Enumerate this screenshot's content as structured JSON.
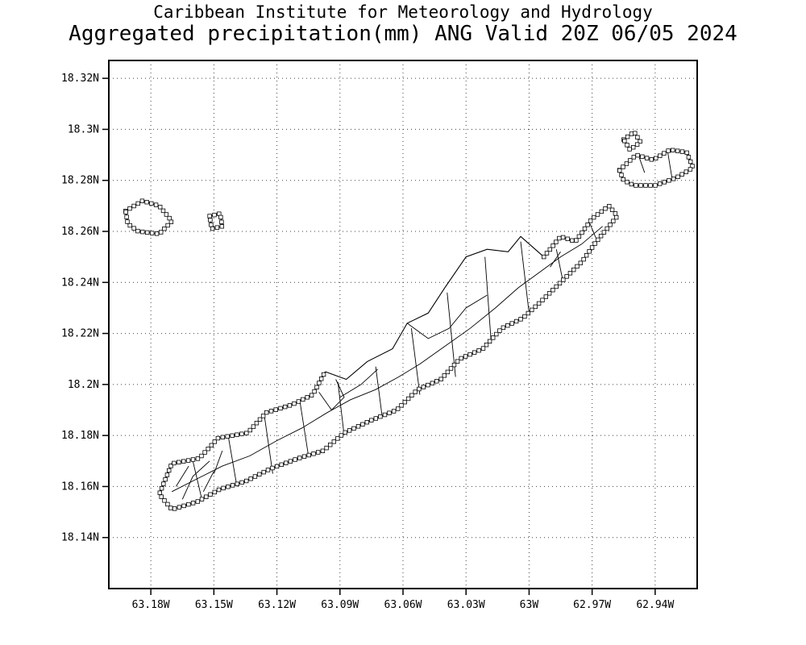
{
  "title": {
    "line1": "Caribbean Institute for Meteorology and Hydrology",
    "line2": "Aggregated precipitation(mm) ANG Valid 20Z 06/05 2024"
  },
  "axes": {
    "x_tick_labels": [
      "63.18W",
      "63.15W",
      "63.12W",
      "63.09W",
      "63.06W",
      "63.03W",
      "63W",
      "62.97W",
      "62.94W"
    ],
    "x_tick_lons": [
      -63.18,
      -63.15,
      -63.12,
      -63.09,
      -63.06,
      -63.03,
      -63.0,
      -62.97,
      -62.94
    ],
    "y_tick_labels": [
      "18.32N",
      "18.3N",
      "18.28N",
      "18.26N",
      "18.24N",
      "18.22N",
      "18.2N",
      "18.18N",
      "18.16N",
      "18.14N"
    ],
    "y_tick_lats": [
      18.32,
      18.3,
      18.28,
      18.26,
      18.24,
      18.22,
      18.2,
      18.18,
      18.16,
      18.14
    ],
    "lon_range": [
      -63.2,
      -62.92
    ],
    "lat_range": [
      18.12,
      18.327
    ]
  },
  "map_data": {
    "type": "map",
    "region_code": "ANG",
    "coast_hatched_open": [
      [
        [
          -62.993,
          18.25
        ],
        [
          -62.985,
          18.258
        ],
        [
          -62.978,
          18.256
        ],
        [
          -62.97,
          18.265
        ],
        [
          -62.962,
          18.27
        ],
        [
          -62.958,
          18.266
        ],
        [
          -62.968,
          18.256
        ],
        [
          -62.975,
          18.248
        ],
        [
          -62.985,
          18.24
        ],
        [
          -62.995,
          18.232
        ],
        [
          -63.003,
          18.226
        ],
        [
          -63.013,
          18.222
        ],
        [
          -63.022,
          18.214
        ],
        [
          -63.033,
          18.21
        ],
        [
          -63.042,
          18.202
        ],
        [
          -63.053,
          18.198
        ],
        [
          -63.063,
          18.19
        ],
        [
          -63.075,
          18.186
        ],
        [
          -63.088,
          18.181
        ],
        [
          -63.098,
          18.174
        ],
        [
          -63.11,
          18.171
        ],
        [
          -63.123,
          18.167
        ],
        [
          -63.135,
          18.162
        ],
        [
          -63.147,
          18.159
        ],
        [
          -63.158,
          18.154
        ],
        [
          -63.17,
          18.151
        ],
        [
          -63.176,
          18.157
        ],
        [
          -63.17,
          18.169
        ],
        [
          -63.157,
          18.171
        ],
        [
          -63.148,
          18.179
        ],
        [
          -63.134,
          18.181
        ],
        [
          -63.125,
          18.189
        ],
        [
          -63.113,
          18.192
        ],
        [
          -63.103,
          18.196
        ],
        [
          -63.097,
          18.205
        ]
      ]
    ],
    "coast_plain": [
      [
        [
          -63.097,
          18.205
        ],
        [
          -63.087,
          18.202
        ],
        [
          -63.077,
          18.209
        ],
        [
          -63.065,
          18.214
        ],
        [
          -63.058,
          18.224
        ],
        [
          -63.048,
          18.228
        ],
        [
          -63.04,
          18.238
        ],
        [
          -63.03,
          18.25
        ],
        [
          -63.02,
          18.253
        ],
        [
          -63.01,
          18.252
        ],
        [
          -63.004,
          18.258
        ],
        [
          -62.993,
          18.25
        ]
      ]
    ],
    "islets_hatched": [
      [
        [
          -63.192,
          18.268
        ],
        [
          -63.184,
          18.272
        ],
        [
          -63.176,
          18.27
        ],
        [
          -63.17,
          18.264
        ],
        [
          -63.176,
          18.259
        ],
        [
          -63.186,
          18.26
        ],
        [
          -63.191,
          18.263
        ]
      ],
      [
        [
          -63.152,
          18.266
        ],
        [
          -63.147,
          18.267
        ],
        [
          -63.146,
          18.262
        ],
        [
          -63.151,
          18.261
        ]
      ],
      [
        [
          -62.957,
          18.284
        ],
        [
          -62.949,
          18.29
        ],
        [
          -62.941,
          18.288
        ],
        [
          -62.933,
          18.292
        ],
        [
          -62.925,
          18.291
        ],
        [
          -62.922,
          18.285
        ],
        [
          -62.93,
          18.281
        ],
        [
          -62.94,
          18.278
        ],
        [
          -62.95,
          18.278
        ],
        [
          -62.955,
          18.28
        ]
      ],
      [
        [
          -62.955,
          18.296
        ],
        [
          -62.95,
          18.299
        ],
        [
          -62.947,
          18.295
        ],
        [
          -62.952,
          18.292
        ]
      ]
    ],
    "interior_lines": [
      [
        [
          -63.17,
          18.158
        ],
        [
          -63.158,
          18.163
        ],
        [
          -63.146,
          18.168
        ],
        [
          -63.133,
          18.172
        ],
        [
          -63.12,
          18.178
        ],
        [
          -63.108,
          18.183
        ],
        [
          -63.096,
          18.189
        ],
        [
          -63.085,
          18.194
        ],
        [
          -63.073,
          18.198
        ],
        [
          -63.062,
          18.203
        ],
        [
          -63.052,
          18.208
        ]
      ],
      [
        [
          -63.052,
          18.208
        ],
        [
          -63.04,
          18.215
        ],
        [
          -63.028,
          18.222
        ],
        [
          -63.016,
          18.23
        ],
        [
          -63.005,
          18.238
        ],
        [
          -62.995,
          18.244
        ],
        [
          -62.985,
          18.25
        ],
        [
          -62.975,
          18.255
        ],
        [
          -62.965,
          18.262
        ]
      ],
      [
        [
          -63.16,
          18.17
        ],
        [
          -63.156,
          18.156
        ]
      ],
      [
        [
          -63.143,
          18.179
        ],
        [
          -63.139,
          18.16
        ]
      ],
      [
        [
          -63.126,
          18.188
        ],
        [
          -63.122,
          18.165
        ]
      ],
      [
        [
          -63.109,
          18.193
        ],
        [
          -63.105,
          18.172
        ]
      ],
      [
        [
          -63.091,
          18.201
        ],
        [
          -63.088,
          18.18
        ]
      ],
      [
        [
          -63.073,
          18.207
        ],
        [
          -63.07,
          18.188
        ]
      ],
      [
        [
          -63.056,
          18.222
        ],
        [
          -63.052,
          18.196
        ]
      ],
      [
        [
          -63.039,
          18.236
        ],
        [
          -63.035,
          18.203
        ]
      ],
      [
        [
          -63.021,
          18.25
        ],
        [
          -63.018,
          18.216
        ]
      ],
      [
        [
          -63.004,
          18.256
        ],
        [
          -63.0,
          18.228
        ]
      ],
      [
        [
          -62.987,
          18.253
        ],
        [
          -62.984,
          18.241
        ]
      ],
      [
        [
          -62.971,
          18.263
        ],
        [
          -62.968,
          18.257
        ]
      ],
      [
        [
          -63.058,
          18.224
        ],
        [
          -63.048,
          18.218
        ],
        [
          -63.038,
          18.222
        ],
        [
          -63.03,
          18.23
        ],
        [
          -63.02,
          18.235
        ]
      ],
      [
        [
          -63.09,
          18.195
        ],
        [
          -63.08,
          18.2
        ],
        [
          -63.072,
          18.206
        ]
      ],
      [
        [
          -63.168,
          18.16
        ],
        [
          -63.162,
          18.168
        ]
      ],
      [
        [
          -63.15,
          18.165
        ],
        [
          -63.146,
          18.174
        ]
      ],
      [
        [
          -63.165,
          18.155
        ],
        [
          -63.16,
          18.164
        ],
        [
          -63.152,
          18.17
        ]
      ],
      [
        [
          -63.155,
          18.158
        ],
        [
          -63.15,
          18.166
        ]
      ],
      [
        [
          -63.1,
          18.197
        ],
        [
          -63.094,
          18.19
        ],
        [
          -63.088,
          18.195
        ],
        [
          -63.092,
          18.202
        ]
      ],
      [
        [
          -62.99,
          18.246
        ],
        [
          -62.985,
          18.252
        ]
      ],
      [
        [
          -62.948,
          18.29
        ],
        [
          -62.945,
          18.283
        ]
      ],
      [
        [
          -62.934,
          18.291
        ],
        [
          -62.932,
          18.281
        ]
      ]
    ]
  },
  "style": {
    "line_color": "#000000",
    "grid_color": "#404040",
    "marker_fill": "#ffffff",
    "background": "#ffffff"
  }
}
